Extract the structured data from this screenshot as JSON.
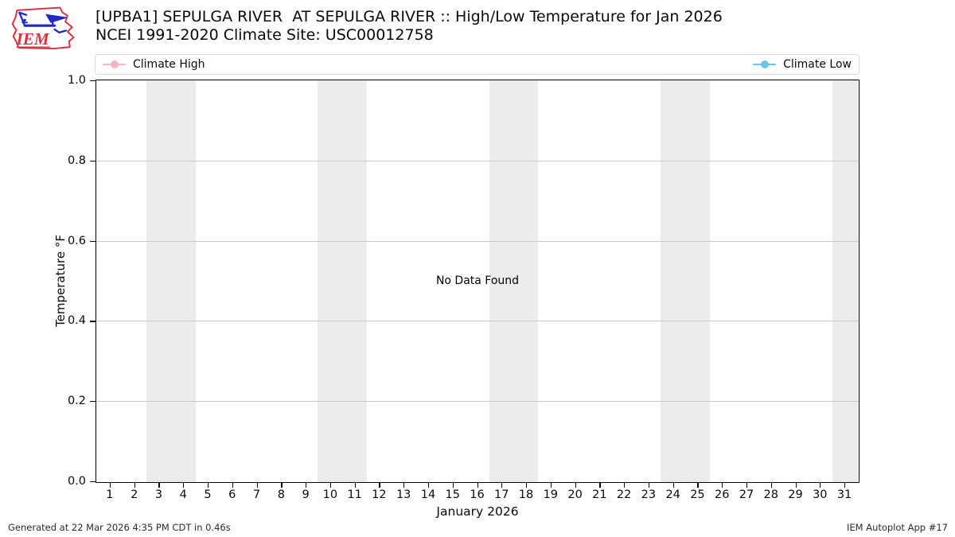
{
  "header": {
    "logo_name": "IEM",
    "title_line1": "[UPBA1] SEPULGA RIVER  AT SEPULGA RIVER :: High/Low Temperature for Jan 2026",
    "title_line2": "NCEI 1991-2020 Climate Site: USC00012758"
  },
  "legend": {
    "items": [
      {
        "label": "Climate High",
        "color": "#f8b3c1"
      },
      {
        "label": "Climate Low",
        "color": "#6ec4e6"
      }
    ]
  },
  "chart_data": {
    "type": "line",
    "title": "[UPBA1] SEPULGA RIVER  AT SEPULGA RIVER :: High/Low Temperature for Jan 2026",
    "subtitle": "NCEI 1991-2020 Climate Site: USC00012758",
    "xlabel": "January 2026",
    "ylabel": "Temperature °F",
    "xlim": [
      0.45,
      31.55
    ],
    "ylim": [
      0.0,
      1.0
    ],
    "x_ticks": [
      1,
      2,
      3,
      4,
      5,
      6,
      7,
      8,
      9,
      10,
      11,
      12,
      13,
      14,
      15,
      16,
      17,
      18,
      19,
      20,
      21,
      22,
      23,
      24,
      25,
      26,
      27,
      28,
      29,
      30,
      31
    ],
    "y_ticks": [
      0.0,
      0.2,
      0.4,
      0.6,
      0.8,
      1.0
    ],
    "y_tick_labels": [
      "0.0",
      "0.2",
      "0.4",
      "0.6",
      "0.8",
      "1.0"
    ],
    "grid": "horizontal-only",
    "legend_position": "top band, first item left / second item right",
    "weekend_shading_day_ranges": [
      [
        2.5,
        4.5
      ],
      [
        9.5,
        11.5
      ],
      [
        16.5,
        18.5
      ],
      [
        23.5,
        25.5
      ],
      [
        30.5,
        31.55
      ]
    ],
    "series": [
      {
        "name": "Climate High",
        "color": "#f8b3c1",
        "marker": "circle",
        "x": [],
        "values": []
      },
      {
        "name": "Climate Low",
        "color": "#6ec4e6",
        "marker": "circle",
        "x": [],
        "values": []
      }
    ],
    "no_data": true,
    "no_data_message": "No Data Found"
  },
  "footer": {
    "left": "Generated at 22 Mar 2026 4:35 PM CDT in 0.46s",
    "right": "IEM Autoplot App #17"
  }
}
